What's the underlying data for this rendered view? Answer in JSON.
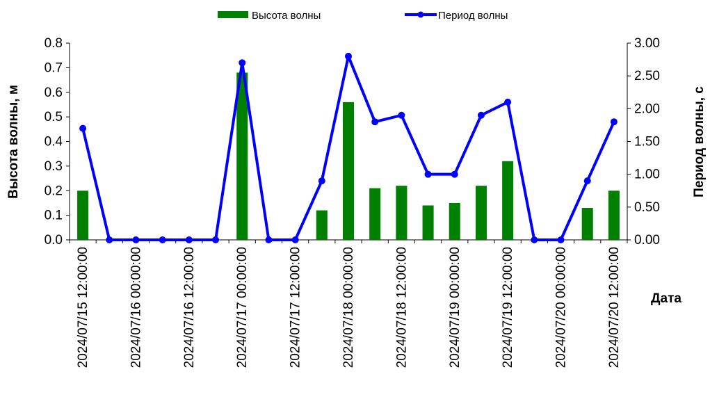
{
  "chart_data": {
    "type": "bar+line",
    "xlabel": "Дата",
    "ylabel_left": "Высота волны, м",
    "ylabel_right": "Период волны, с",
    "ylim_left": [
      0,
      0.8
    ],
    "ylim_right": [
      0,
      3.0
    ],
    "yticks_left": [
      "0.0",
      "0.1",
      "0.2",
      "0.3",
      "0.4",
      "0.5",
      "0.6",
      "0.7",
      "0.8"
    ],
    "yticks_right": [
      "0.00",
      "0.50",
      "1.00",
      "1.50",
      "2.00",
      "2.50",
      "3.00"
    ],
    "categories": [
      "2024/07/15 12:00:00",
      "2024/07/15 18:00:00",
      "2024/07/16 00:00:00",
      "2024/07/16 06:00:00",
      "2024/07/16 12:00:00",
      "2024/07/16 18:00:00",
      "2024/07/17 00:00:00",
      "2024/07/17 06:00:00",
      "2024/07/17 12:00:00",
      "2024/07/17 18:00:00",
      "2024/07/18 00:00:00",
      "2024/07/18 06:00:00",
      "2024/07/18 12:00:00",
      "2024/07/18 18:00:00",
      "2024/07/19 00:00:00",
      "2024/07/19 06:00:00",
      "2024/07/19 12:00:00",
      "2024/07/19 18:00:00",
      "2024/07/20 00:00:00",
      "2024/07/20 06:00:00",
      "2024/07/20 12:00:00"
    ],
    "visible_tick_labels": [
      "2024/07/15 12:00:00",
      "2024/07/16 00:00:00",
      "2024/07/16 12:00:00",
      "2024/07/17 00:00:00",
      "2024/07/17 12:00:00",
      "2024/07/18 00:00:00",
      "2024/07/18 12:00:00",
      "2024/07/19 00:00:00",
      "2024/07/19 12:00:00",
      "2024/07/20 00:00:00",
      "2024/07/20 12:00:00"
    ],
    "series": [
      {
        "name": "Высота волны",
        "kind": "bar",
        "axis": "left",
        "color": "#008000",
        "values": [
          0.2,
          0,
          0,
          0,
          0,
          0,
          0.68,
          0,
          0,
          0.12,
          0.56,
          0.21,
          0.22,
          0.14,
          0.15,
          0.22,
          0.32,
          0,
          0,
          0.13,
          0.2
        ]
      },
      {
        "name": "Период волны",
        "kind": "line",
        "axis": "right",
        "color": "#0000ff",
        "values": [
          1.7,
          0,
          0,
          0,
          0,
          0,
          2.7,
          0,
          0,
          0.9,
          2.8,
          1.8,
          1.9,
          1.0,
          1.0,
          1.9,
          2.1,
          0,
          0,
          0.9,
          1.8
        ]
      }
    ],
    "legend_position": "top-center",
    "grid": false
  }
}
